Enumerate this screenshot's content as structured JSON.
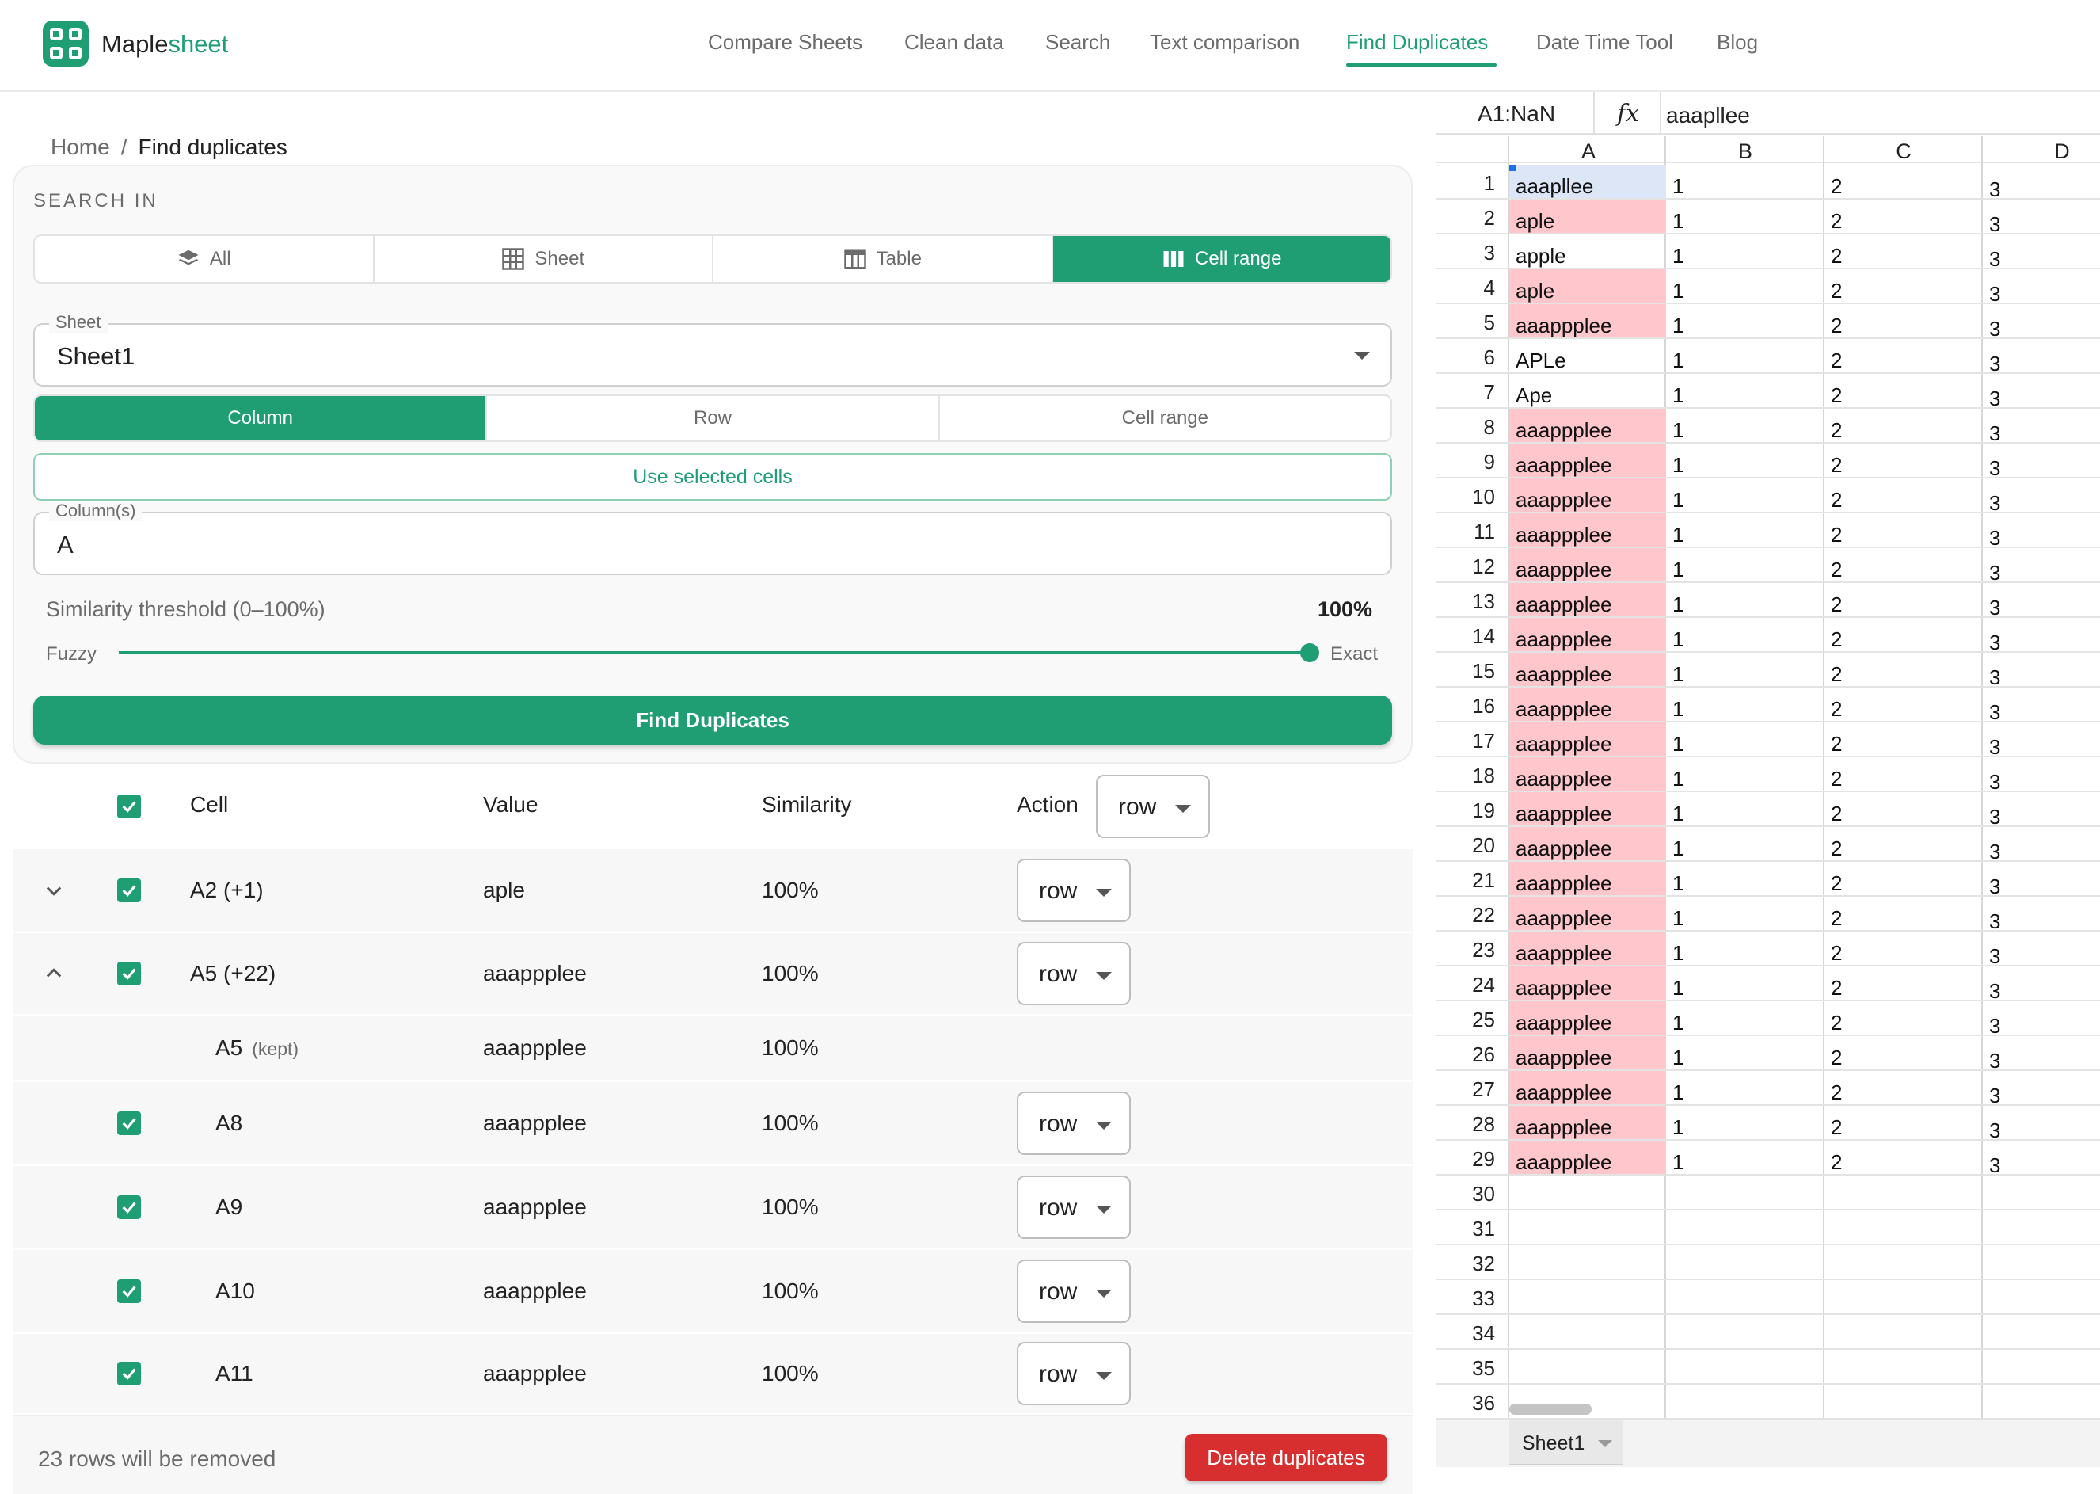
{
  "brand": {
    "name_main": "Maple",
    "name_accent": "sheet",
    "accent_color": "#1f9e73"
  },
  "nav": {
    "items": [
      "Compare Sheets",
      "Clean data",
      "Search",
      "Text comparison",
      "Find Duplicates",
      "Date Time Tool",
      "Blog"
    ],
    "active": "Find Duplicates"
  },
  "breadcrumb": {
    "home": "Home",
    "separator": "/",
    "current": "Find duplicates"
  },
  "search_in": {
    "label": "SEARCH IN",
    "options": [
      {
        "label": "All",
        "icon": "layers-icon"
      },
      {
        "label": "Sheet",
        "icon": "grid-icon"
      },
      {
        "label": "Table",
        "icon": "table-icon"
      },
      {
        "label": "Cell range",
        "icon": "columns-icon"
      }
    ],
    "selected": "Cell range"
  },
  "sheet_select": {
    "legend": "Sheet",
    "value": "Sheet1"
  },
  "mode": {
    "options": [
      "Column",
      "Row",
      "Cell range"
    ],
    "selected": "Column"
  },
  "use_selected_label": "Use selected cells",
  "columns_field": {
    "legend": "Column(s)",
    "value": "A"
  },
  "threshold": {
    "label": "Similarity threshold (0–100%)",
    "value_text": "100%",
    "value": 100,
    "min_label": "Fuzzy",
    "max_label": "Exact"
  },
  "find_button": "Find Duplicates",
  "results": {
    "headers": {
      "cell": "Cell",
      "value": "Value",
      "similarity": "Similarity",
      "action": "Action"
    },
    "header_action_value": "row",
    "rows": [
      {
        "cell": "A2 (+1)",
        "value": "aple",
        "similarity": "100%",
        "action": "row",
        "expand": "chevron-down-icon"
      },
      {
        "cell": "A5 (+22)",
        "value": "aaappplee",
        "similarity": "100%",
        "action": "row",
        "expand": "chevron-up-icon"
      },
      {
        "cell": "A5",
        "kept": "(kept)",
        "value": "aaappplee",
        "similarity": "100%"
      },
      {
        "cell": "A8",
        "value": "aaappplee",
        "similarity": "100%",
        "action": "row"
      },
      {
        "cell": "A9",
        "value": "aaappplee",
        "similarity": "100%",
        "action": "row"
      },
      {
        "cell": "A10",
        "value": "aaappplee",
        "similarity": "100%",
        "action": "row"
      },
      {
        "cell": "A11",
        "value": "aaappplee",
        "similarity": "100%",
        "action": "row"
      }
    ],
    "footer_text": "23 rows will be removed",
    "delete_button": "Delete duplicates"
  },
  "spreadsheet": {
    "name_box": "A1:NaN",
    "fx": "fx",
    "formula_value": "aaapllee",
    "columns": [
      "A",
      "B",
      "C",
      "D"
    ],
    "row_count": 36,
    "rows": [
      {
        "a": "aaapllee",
        "b": "1",
        "c": "2",
        "d": "3",
        "hl": "selected"
      },
      {
        "a": "aple",
        "b": "1",
        "c": "2",
        "d": "3",
        "hl": "dup"
      },
      {
        "a": "apple",
        "b": "1",
        "c": "2",
        "d": "3",
        "hl": ""
      },
      {
        "a": "aple",
        "b": "1",
        "c": "2",
        "d": "3",
        "hl": "dup"
      },
      {
        "a": "aaappplee",
        "b": "1",
        "c": "2",
        "d": "3",
        "hl": "dup"
      },
      {
        "a": "APLe",
        "b": "1",
        "c": "2",
        "d": "3",
        "hl": ""
      },
      {
        "a": "Ape",
        "b": "1",
        "c": "2",
        "d": "3",
        "hl": ""
      },
      {
        "a": "aaappplee",
        "b": "1",
        "c": "2",
        "d": "3",
        "hl": "dup"
      },
      {
        "a": "aaappplee",
        "b": "1",
        "c": "2",
        "d": "3",
        "hl": "dup"
      },
      {
        "a": "aaappplee",
        "b": "1",
        "c": "2",
        "d": "3",
        "hl": "dup"
      },
      {
        "a": "aaappplee",
        "b": "1",
        "c": "2",
        "d": "3",
        "hl": "dup"
      },
      {
        "a": "aaappplee",
        "b": "1",
        "c": "2",
        "d": "3",
        "hl": "dup"
      },
      {
        "a": "aaappplee",
        "b": "1",
        "c": "2",
        "d": "3",
        "hl": "dup"
      },
      {
        "a": "aaappplee",
        "b": "1",
        "c": "2",
        "d": "3",
        "hl": "dup"
      },
      {
        "a": "aaappplee",
        "b": "1",
        "c": "2",
        "d": "3",
        "hl": "dup"
      },
      {
        "a": "aaappplee",
        "b": "1",
        "c": "2",
        "d": "3",
        "hl": "dup"
      },
      {
        "a": "aaappplee",
        "b": "1",
        "c": "2",
        "d": "3",
        "hl": "dup"
      },
      {
        "a": "aaappplee",
        "b": "1",
        "c": "2",
        "d": "3",
        "hl": "dup"
      },
      {
        "a": "aaappplee",
        "b": "1",
        "c": "2",
        "d": "3",
        "hl": "dup"
      },
      {
        "a": "aaappplee",
        "b": "1",
        "c": "2",
        "d": "3",
        "hl": "dup"
      },
      {
        "a": "aaappplee",
        "b": "1",
        "c": "2",
        "d": "3",
        "hl": "dup"
      },
      {
        "a": "aaappplee",
        "b": "1",
        "c": "2",
        "d": "3",
        "hl": "dup"
      },
      {
        "a": "aaappplee",
        "b": "1",
        "c": "2",
        "d": "3",
        "hl": "dup"
      },
      {
        "a": "aaappplee",
        "b": "1",
        "c": "2",
        "d": "3",
        "hl": "dup"
      },
      {
        "a": "aaappplee",
        "b": "1",
        "c": "2",
        "d": "3",
        "hl": "dup"
      },
      {
        "a": "aaappplee",
        "b": "1",
        "c": "2",
        "d": "3",
        "hl": "dup"
      },
      {
        "a": "aaappplee",
        "b": "1",
        "c": "2",
        "d": "3",
        "hl": "dup"
      },
      {
        "a": "aaappplee",
        "b": "1",
        "c": "2",
        "d": "3",
        "hl": "dup"
      },
      {
        "a": "aaappplee",
        "b": "1",
        "c": "2",
        "d": "3",
        "hl": "dup"
      }
    ],
    "dup_color": "#ffc7cc",
    "selected_color": "#dce6f7",
    "sheet_tab": "Sheet1"
  }
}
